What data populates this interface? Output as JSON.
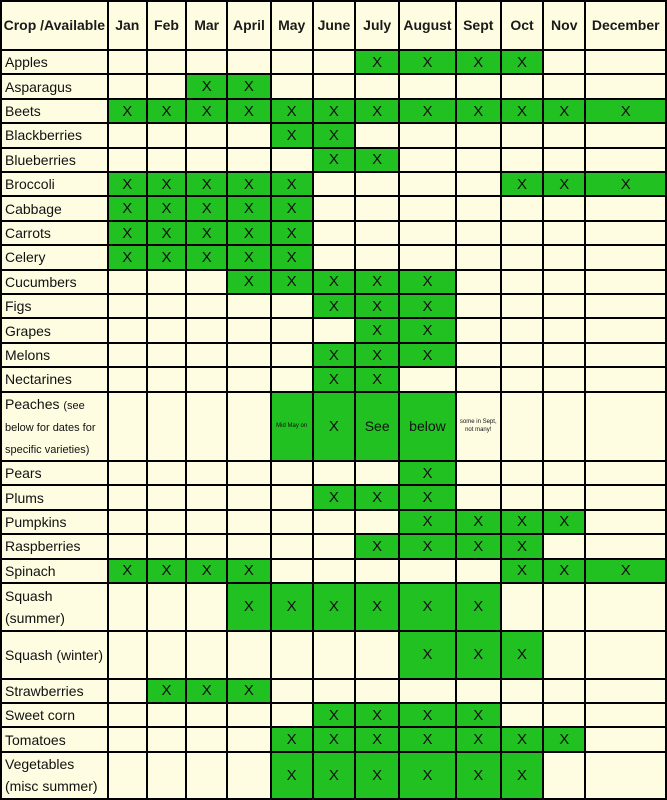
{
  "header": {
    "crop": "Crop /Available",
    "months": [
      "Jan",
      "Feb",
      "Mar",
      "April",
      "May",
      "June",
      "July",
      "August",
      "Sept",
      "Oct",
      "Nov",
      "December"
    ]
  },
  "mark": "X",
  "colors": {
    "available": "#22c122",
    "background": "#fffde1",
    "border": "#000000"
  },
  "rows": [
    {
      "crop": "Apples",
      "cells": [
        "",
        "",
        "",
        "",
        "",
        "",
        "X",
        "X",
        "X",
        "X",
        "",
        ""
      ]
    },
    {
      "crop": "Asparagus",
      "cells": [
        "",
        "",
        "X",
        "X",
        "",
        "",
        "",
        "",
        "",
        "",
        "",
        ""
      ]
    },
    {
      "crop": "Beets",
      "cells": [
        "X",
        "X",
        "X",
        "X",
        "X",
        "X",
        "X",
        "X",
        "X",
        "X",
        "X",
        "X"
      ]
    },
    {
      "crop": "Blackberries",
      "cells": [
        "",
        "",
        "",
        "",
        "X",
        "X",
        "",
        "",
        "",
        "",
        "",
        ""
      ]
    },
    {
      "crop": "Blueberries",
      "cells": [
        "",
        "",
        "",
        "",
        "",
        "X",
        "X",
        "",
        "",
        "",
        "",
        ""
      ]
    },
    {
      "crop": "Broccoli",
      "cells": [
        "X",
        "X",
        "X",
        "X",
        "X",
        "",
        "",
        "",
        "",
        "X",
        "X",
        "X"
      ]
    },
    {
      "crop": "Cabbage",
      "cells": [
        "X",
        "X",
        "X",
        "X",
        "X",
        "",
        "",
        "",
        "",
        "",
        "",
        ""
      ]
    },
    {
      "crop": "Carrots",
      "cells": [
        "X",
        "X",
        "X",
        "X",
        "X",
        "",
        "",
        "",
        "",
        "",
        "",
        ""
      ]
    },
    {
      "crop": "Celery",
      "cells": [
        "X",
        "X",
        "X",
        "X",
        "X",
        "",
        "",
        "",
        "",
        "",
        "",
        ""
      ]
    },
    {
      "crop": "Cucumbers",
      "cells": [
        "",
        "",
        "",
        "X",
        "X",
        "X",
        "X",
        "X",
        "",
        "",
        "",
        ""
      ]
    },
    {
      "crop": "Figs",
      "cells": [
        "",
        "",
        "",
        "",
        "",
        "X",
        "X",
        "X",
        "",
        "",
        "",
        ""
      ]
    },
    {
      "crop": "Grapes",
      "cells": [
        "",
        "",
        "",
        "",
        "",
        "",
        "X",
        "X",
        "",
        "",
        "",
        ""
      ]
    },
    {
      "crop": "Melons",
      "cells": [
        "",
        "",
        "",
        "",
        "",
        "X",
        "X",
        "X",
        "",
        "",
        "",
        ""
      ]
    },
    {
      "crop": "Nectarines",
      "cells": [
        "",
        "",
        "",
        "",
        "",
        "X",
        "X",
        "",
        "",
        "",
        "",
        ""
      ]
    },
    {
      "crop": "Peaches",
      "crop_note": "(see below for dates for specific varieties)",
      "cells": [
        "",
        "",
        "",
        "",
        "Mid May on",
        "X",
        "See",
        "below",
        "some in Sept, not many!",
        "",
        "",
        ""
      ]
    },
    {
      "crop": "Pears",
      "cells": [
        "",
        "",
        "",
        "",
        "",
        "",
        "",
        "X",
        "",
        "",
        "",
        ""
      ]
    },
    {
      "crop": "Plums",
      "cells": [
        "",
        "",
        "",
        "",
        "",
        "X",
        "X",
        "X",
        "",
        "",
        "",
        ""
      ]
    },
    {
      "crop": "Pumpkins",
      "cells": [
        "",
        "",
        "",
        "",
        "",
        "",
        "",
        "X",
        "X",
        "X",
        "X",
        ""
      ]
    },
    {
      "crop": "Raspberries",
      "cells": [
        "",
        "",
        "",
        "",
        "",
        "",
        "X",
        "X",
        "X",
        "X",
        "",
        ""
      ]
    },
    {
      "crop": "Spinach",
      "cells": [
        "X",
        "X",
        "X",
        "X",
        "",
        "",
        "",
        "",
        "",
        "X",
        "X",
        "X"
      ]
    },
    {
      "crop": "Squash (summer)",
      "cells": [
        "",
        "",
        "",
        "X",
        "X",
        "X",
        "X",
        "X",
        "X",
        "",
        "",
        ""
      ]
    },
    {
      "crop": "Squash (winter)",
      "cells": [
        "",
        "",
        "",
        "",
        "",
        "",
        "",
        "X",
        "X",
        "X",
        "",
        ""
      ]
    },
    {
      "crop": "Strawberries",
      "cells": [
        "",
        "X",
        "X",
        "X",
        "",
        "",
        "",
        "",
        "",
        "",
        "",
        ""
      ]
    },
    {
      "crop": "Sweet corn",
      "cells": [
        "",
        "",
        "",
        "",
        "",
        "X",
        "X",
        "X",
        "X",
        "",
        "",
        ""
      ]
    },
    {
      "crop": "Tomatoes",
      "cells": [
        "",
        "",
        "",
        "",
        "X",
        "X",
        "X",
        "X",
        "X",
        "X",
        "X",
        ""
      ]
    },
    {
      "crop": "Vegetables (misc summer)",
      "cells": [
        "",
        "",
        "",
        "",
        "X",
        "X",
        "X",
        "X",
        "X",
        "X",
        "",
        ""
      ]
    }
  ]
}
